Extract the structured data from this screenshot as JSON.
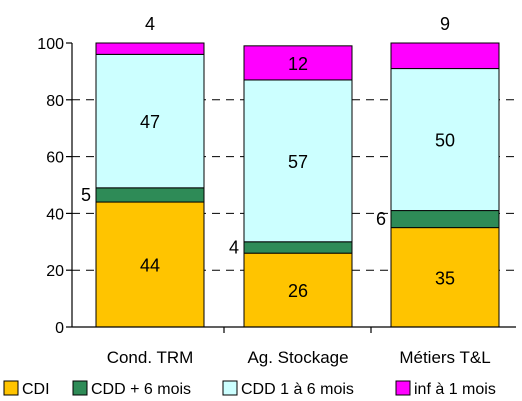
{
  "chart_data": {
    "type": "bar",
    "stacked": true,
    "categories": [
      "Cond. TRM",
      "Ag. Stockage",
      "Métiers T&L"
    ],
    "series": [
      {
        "name": "CDI",
        "color": "#FFC400",
        "values": [
          44,
          26,
          35
        ],
        "labels": [
          "44",
          "26",
          "35"
        ]
      },
      {
        "name": "CDD + 6 mois",
        "color": "#2E8B57",
        "values": [
          5,
          4,
          6
        ],
        "labels": [
          "5",
          "4",
          "6"
        ]
      },
      {
        "name": "CDD 1 à 6 mois",
        "color": "#CCFFFF",
        "values": [
          47,
          57,
          50
        ],
        "labels": [
          "47",
          "57",
          "50"
        ]
      },
      {
        "name": "inf à 1 mois",
        "color": "#FF00FF",
        "values": [
          4,
          12,
          9
        ],
        "labels": [
          "4",
          "12",
          "9"
        ]
      }
    ],
    "ylim": [
      0,
      100
    ],
    "yticks": [
      "0",
      "20",
      "40",
      "60",
      "80",
      "100"
    ],
    "grid": "dashed horizontal",
    "legend_position": "bottom"
  }
}
